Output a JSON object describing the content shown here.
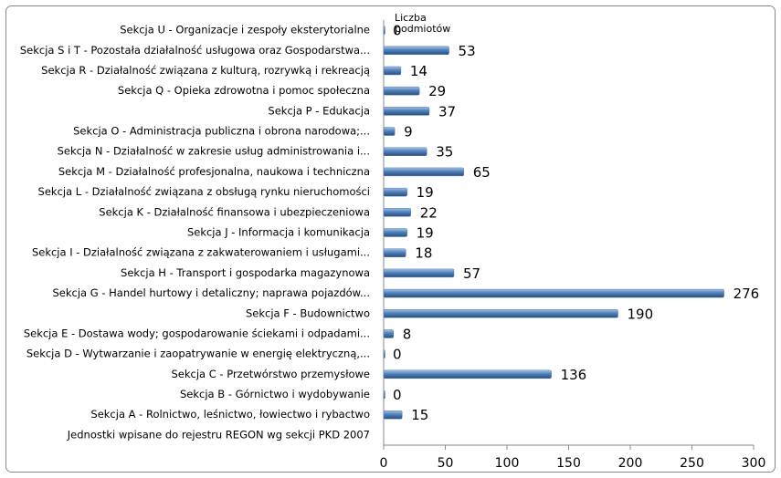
{
  "chart_data": {
    "type": "bar",
    "orientation": "horizontal",
    "categories": [
      "Sekcja U - Organizacje i zespoły eksterytorialne",
      "Sekcja S i T - Pozostała działalność usługowa oraz Gospodarstwa...",
      "Sekcja R - Działalność związana z kulturą, rozrywką i rekreacją",
      "Sekcja Q - Opieka zdrowotna i pomoc społeczna",
      "Sekcja P - Edukacja",
      "Sekcja O - Administracja publiczna i obrona narodowa;...",
      "Sekcja N - Działalność w zakresie usług administrowania i...",
      "Sekcja M - Działalność profesjonalna, naukowa i techniczna",
      "Sekcja L - Działalność związana z obsługą rynku nieruchomości",
      "Sekcja K - Działalność finansowa i ubezpieczeniowa",
      "Sekcja J - Informacja i komunikacja",
      "Sekcja I - Działalność związana z zakwaterowaniem i usługami...",
      "Sekcja H - Transport i gospodarka magazynowa",
      "Sekcja G - Handel hurtowy i detaliczny; naprawa pojazdów...",
      "Sekcja F - Budownictwo",
      "Sekcja E - Dostawa wody; gospodarowanie ściekami i odpadami...",
      "Sekcja D - Wytwarzanie i zaopatrywanie w energię elektryczną,...",
      "Sekcja C - Przetwórstwo przemysłowe",
      "Sekcja B - Górnictwo i wydobywanie",
      "Sekcja A - Rolnictwo, leśnictwo, łowiectwo i rybactwo",
      "Jednostki wpisane do rejestru REGON wg sekcji PKD 2007"
    ],
    "series": [
      {
        "name": "Liczba podmiotów",
        "color": "#4f81bd",
        "values": [
          0,
          53,
          14,
          29,
          37,
          9,
          35,
          65,
          19,
          22,
          19,
          18,
          57,
          276,
          190,
          8,
          0,
          136,
          0,
          15,
          null
        ]
      }
    ],
    "xlim": [
      0,
      300
    ],
    "xticks": [
      0,
      50,
      100,
      150,
      200,
      250,
      300
    ],
    "grid": false
  }
}
